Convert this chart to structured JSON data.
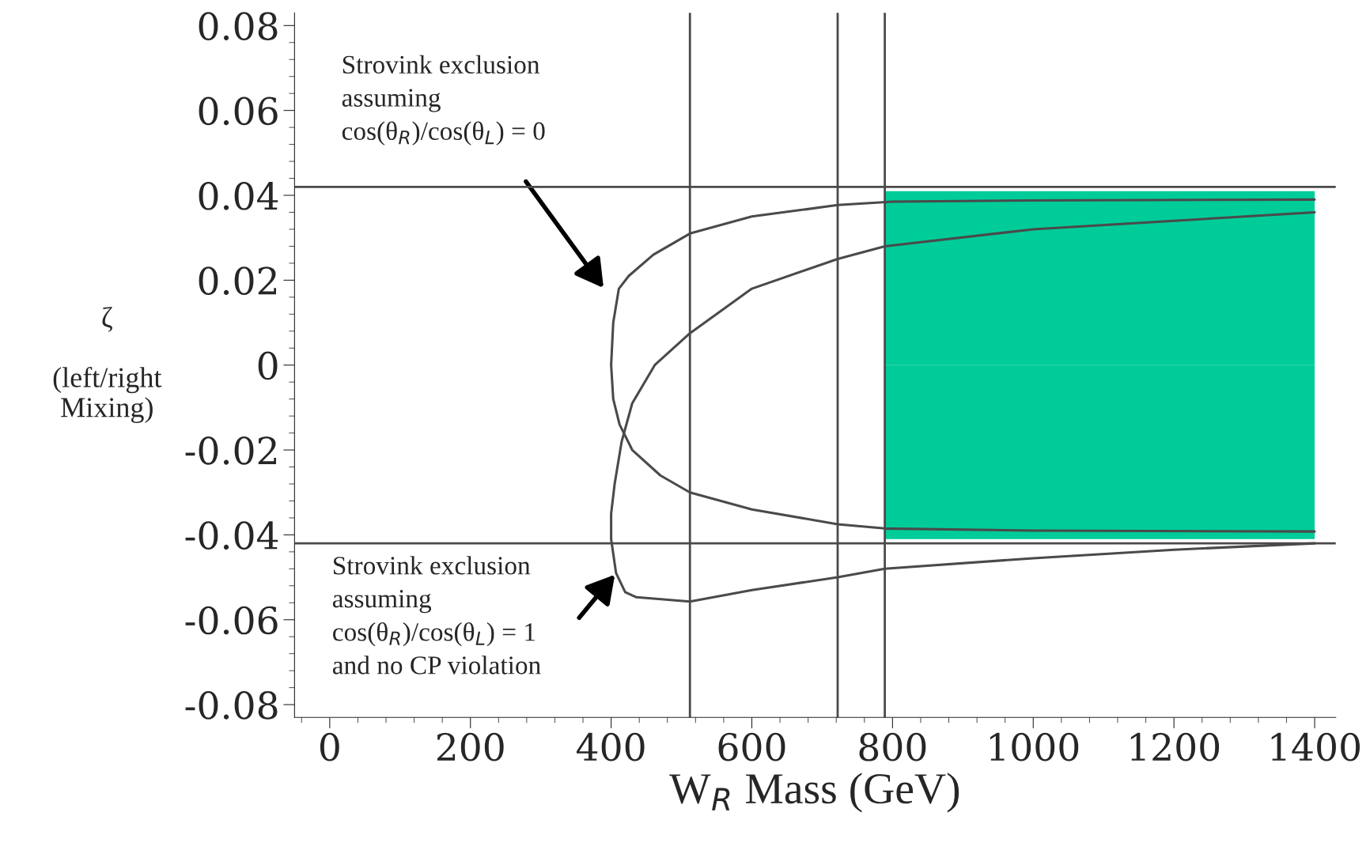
{
  "chart_data": {
    "type": "line",
    "xlabel": "W$_{R}$ Mass (GeV)",
    "ylabel": "ζ\n\n(left/right\nMixing)",
    "xlim": [
      -50,
      1430
    ],
    "ylim": [
      -0.083,
      0.083
    ],
    "xticks": [
      0,
      200,
      400,
      600,
      800,
      1000,
      1200,
      1400
    ],
    "yticks": [
      -0.08,
      -0.06,
      -0.04,
      -0.02,
      0,
      0.02,
      0.04,
      0.06,
      0.08
    ],
    "grid": false,
    "marker": "none",
    "line_style": "solid",
    "series": [
      {
        "type": "area",
        "color": "#00cc99",
        "x": [
          790,
          1400
        ],
        "values": [
          0.041,
          0.041
        ]
      },
      {
        "type": "area",
        "color": "#00cc99",
        "x": [
          790,
          1400
        ],
        "values": [
          -0.041,
          -0.041
        ]
      },
      {
        "color": "#4a4a4a",
        "x": [
          1400,
          1000,
          800,
          722,
          600,
          512,
          460,
          425,
          411,
          403,
          400,
          403,
          412,
          430,
          470,
          512,
          600,
          722,
          789,
          1000,
          1400
        ],
        "values": [
          0.039,
          0.0388,
          0.0385,
          0.0377,
          0.035,
          0.031,
          0.026,
          0.021,
          0.018,
          0.01,
          0,
          -0.008,
          -0.014,
          -0.02,
          -0.026,
          -0.03,
          -0.034,
          -0.0375,
          -0.0385,
          -0.039,
          -0.0392
        ]
      },
      {
        "color": "#4a4a4a",
        "x": [
          1400,
          1200,
          1000,
          789,
          722,
          600,
          512,
          462,
          430,
          415,
          405,
          400,
          400,
          407,
          420,
          436,
          512,
          600,
          722,
          789,
          1000,
          1200,
          1400
        ],
        "values": [
          0.036,
          0.034,
          0.032,
          0.028,
          0.025,
          0.018,
          0.0075,
          0,
          -0.009,
          -0.018,
          -0.028,
          -0.035,
          -0.041,
          -0.049,
          -0.0535,
          -0.0547,
          -0.0557,
          -0.053,
          -0.05,
          -0.048,
          -0.0455,
          -0.0435,
          -0.042
        ]
      }
    ],
    "ref_lines": [
      {
        "axis": "y",
        "value": 0.042,
        "color": "#4a4a4a"
      },
      {
        "axis": "y",
        "value": -0.042,
        "color": "#4a4a4a"
      },
      {
        "axis": "x",
        "value": 512,
        "color": "#4a4a4a"
      },
      {
        "axis": "x",
        "value": 722,
        "color": "#4a4a4a"
      },
      {
        "axis": "x",
        "value": 789,
        "color": "#4a4a4a"
      }
    ],
    "annotations": [
      "Strovink exclusion\nassuming\ncos(θ$_{R}$)/cos(θ$_{L}$) = 0",
      "Strovink exclusion\nassuming\ncos(θ$_{R}$)/cos(θ$_{L}$) = 1\nand no CP violation"
    ]
  }
}
